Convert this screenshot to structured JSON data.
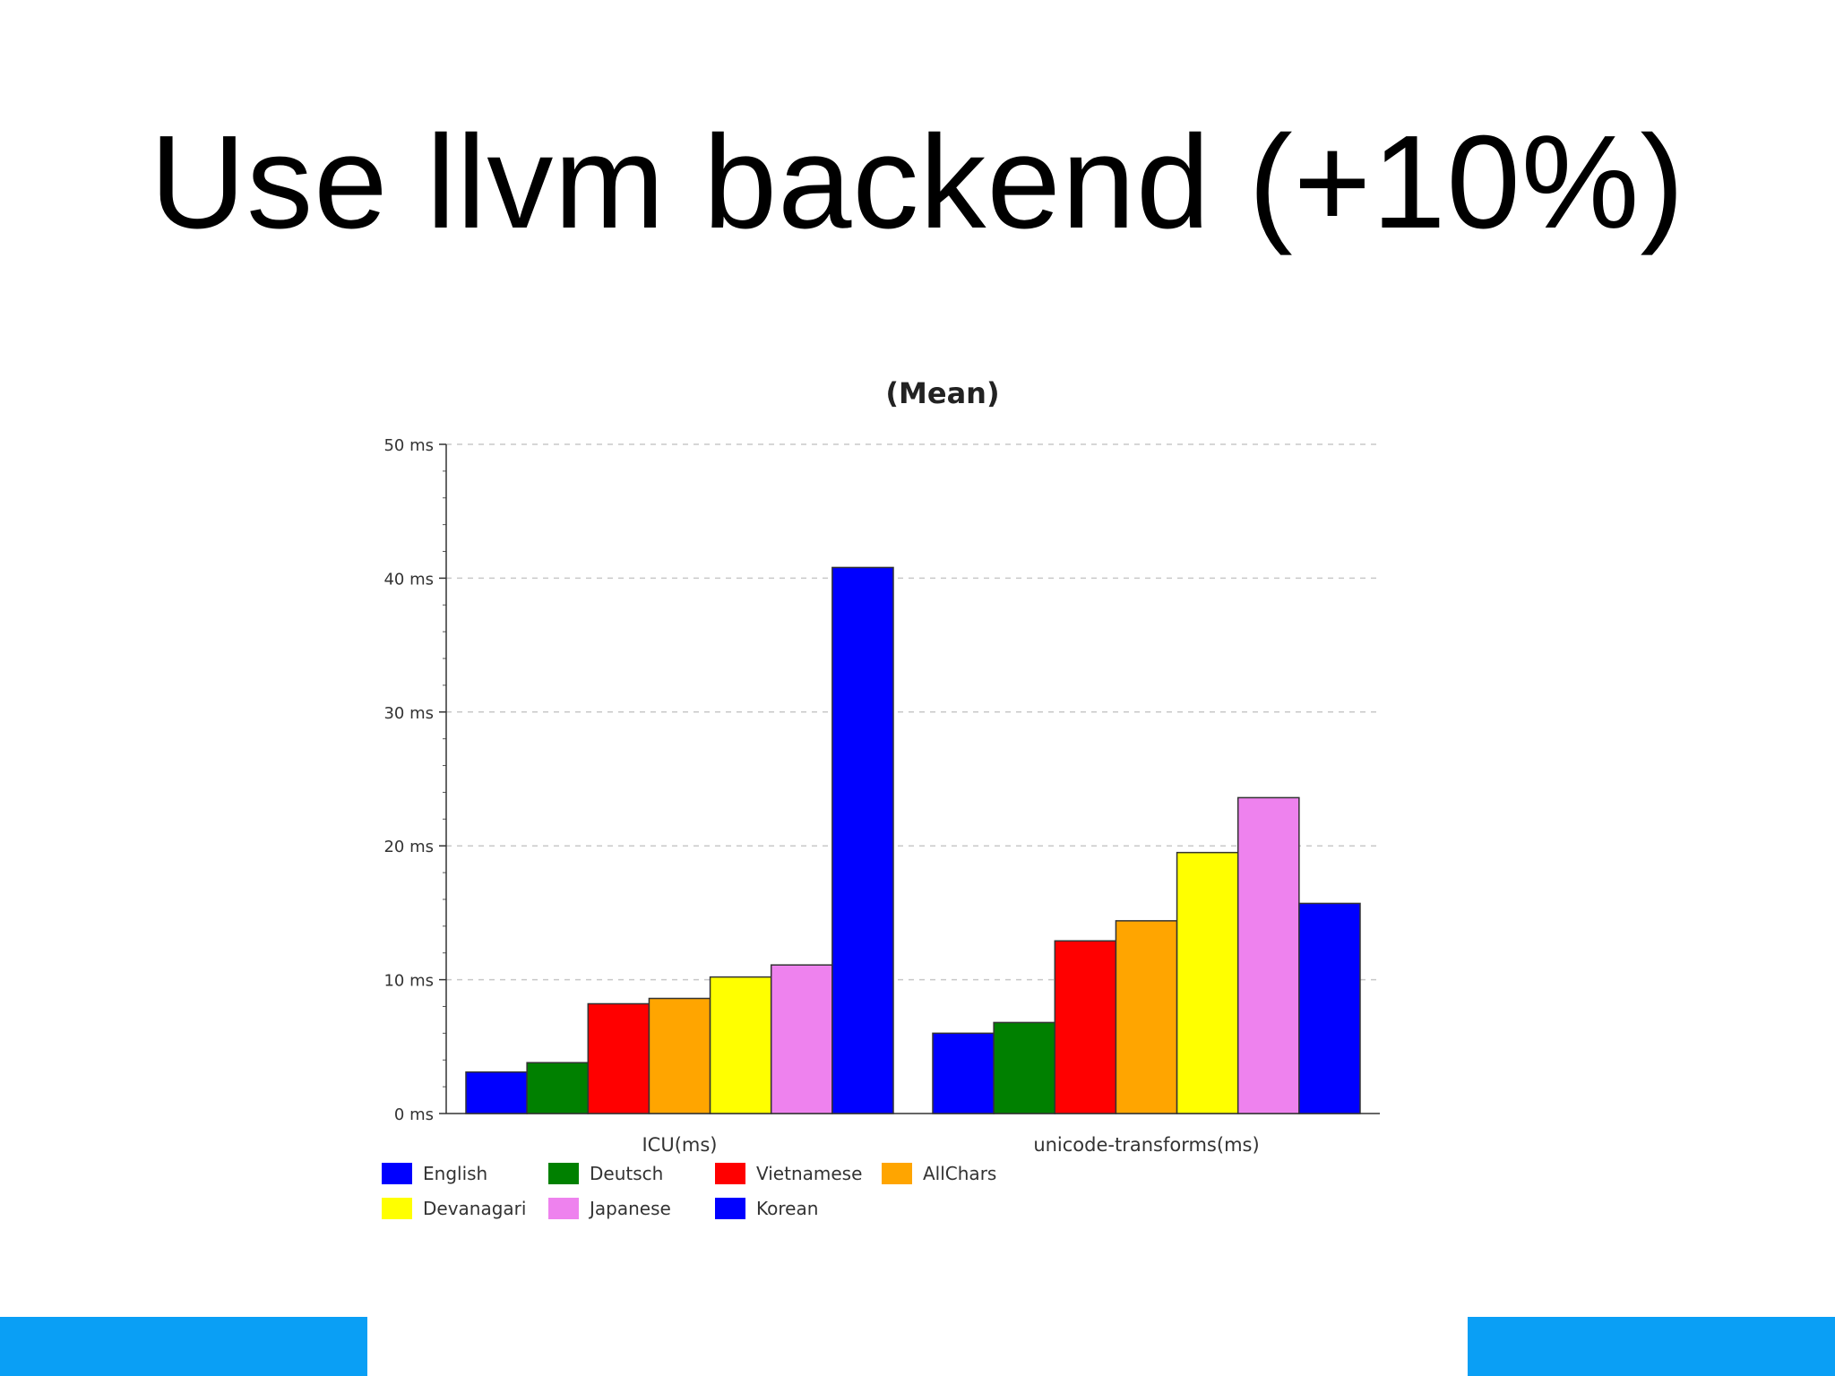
{
  "slide": {
    "title": "Use llvm backend (+10%)",
    "accent_color": "#0a9ff5"
  },
  "chart_data": {
    "type": "bar",
    "title": "(Mean)",
    "xlabel": "",
    "ylabel": "",
    "ylim": [
      0,
      50
    ],
    "yticks": [
      {
        "value": 0,
        "label": "0 ms"
      },
      {
        "value": 10,
        "label": "10 ms"
      },
      {
        "value": 20,
        "label": "20 ms"
      },
      {
        "value": 30,
        "label": "30 ms"
      },
      {
        "value": 40,
        "label": "40 ms"
      },
      {
        "value": 50,
        "label": "50 ms"
      }
    ],
    "grid": true,
    "legend_position": "bottom-left",
    "categories": [
      "ICU(ms)",
      "unicode-transforms(ms)"
    ],
    "series": [
      {
        "name": "English",
        "color": "#0000ff",
        "values": [
          3.1,
          6.0
        ]
      },
      {
        "name": "Deutsch",
        "color": "#008000",
        "values": [
          3.8,
          6.8
        ]
      },
      {
        "name": "Vietnamese",
        "color": "#ff0000",
        "values": [
          8.2,
          12.9
        ]
      },
      {
        "name": "AllChars",
        "color": "#ffa500",
        "values": [
          8.6,
          14.4
        ]
      },
      {
        "name": "Devanagari",
        "color": "#ffff00",
        "values": [
          10.2,
          19.5
        ]
      },
      {
        "name": "Japanese",
        "color": "#ee82ee",
        "values": [
          11.1,
          23.6
        ]
      },
      {
        "name": "Korean",
        "color": "#0000ff",
        "values": [
          40.8,
          15.7
        ]
      }
    ]
  }
}
